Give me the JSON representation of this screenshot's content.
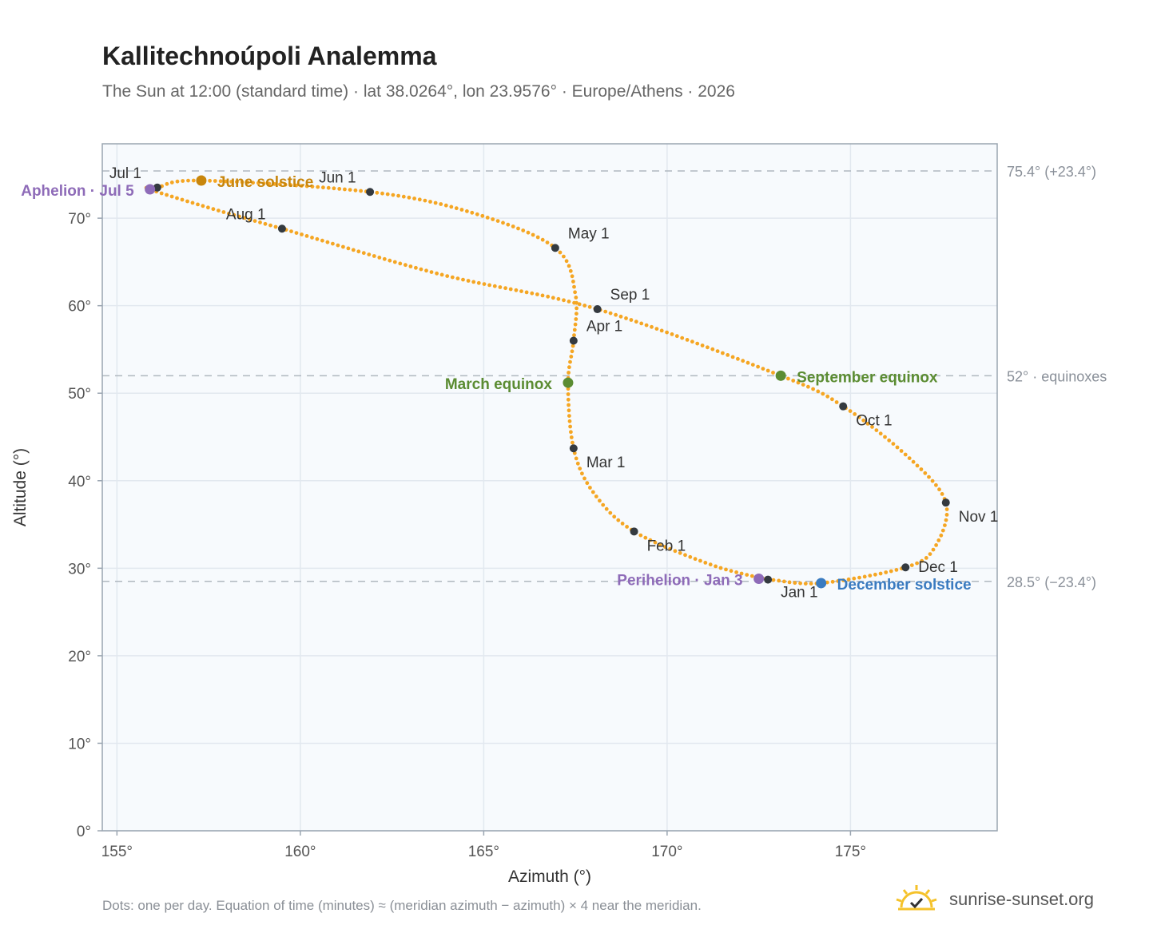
{
  "title": "Kallitechnoúpoli Analemma",
  "subtitle": "The Sun at 12:00 (standard time) · lat 38.0264°, lon 23.9576° · Europe/Athens · 2026",
  "footnote": "Dots: one per day. Equation of time (minutes) ≈ (meridian azimuth − azimuth) × 4 near the meridian.",
  "brand": {
    "text": "sunrise-sunset.org",
    "icon": "sun-check-icon"
  },
  "chart_data": {
    "type": "scatter",
    "xlabel": "Azimuth (°)",
    "ylabel": "Altitude (°)",
    "xlim": [
      154.6,
      179.0
    ],
    "ylim": [
      0,
      78.5
    ],
    "xticks": [
      155,
      160,
      165,
      170,
      175
    ],
    "yticks": [
      0,
      10,
      20,
      30,
      40,
      50,
      60,
      70
    ],
    "x_tick_labels": [
      "155°",
      "160°",
      "165°",
      "170°",
      "175°"
    ],
    "y_tick_labels": [
      "0°",
      "10°",
      "20°",
      "30°",
      "40°",
      "50°",
      "60°",
      "70°"
    ],
    "grid": true,
    "colors": {
      "path": "#f5a623",
      "month": "#343a40",
      "equinox": "#5b8c32",
      "june": "#c8860d",
      "december": "#3a7bc0",
      "apsis": "#8e6bb8",
      "ref": "#b0b8c0"
    },
    "reference_lines": [
      {
        "y": 75.4,
        "label": "75.4° (+23.4°)"
      },
      {
        "y": 52.0,
        "label": "52° · equinoxes"
      },
      {
        "y": 28.5,
        "label": "28.5° (−23.4°)"
      }
    ],
    "daily_path": [
      {
        "date": "Jan 1",
        "az": 172.75,
        "alt": 28.7
      },
      {
        "date": "Jan 16",
        "az": 171.2,
        "alt": 30.4
      },
      {
        "date": "Feb 1",
        "az": 169.1,
        "alt": 34.2
      },
      {
        "date": "Feb 15",
        "az": 168.0,
        "alt": 38.6
      },
      {
        "date": "Mar 1",
        "az": 167.45,
        "alt": 43.7
      },
      {
        "date": "Mar 20",
        "az": 167.3,
        "alt": 51.2
      },
      {
        "date": "Apr 1",
        "az": 167.45,
        "alt": 56.0
      },
      {
        "date": "Apr 15",
        "az": 167.5,
        "alt": 61.3
      },
      {
        "date": "May 1",
        "az": 166.95,
        "alt": 66.6
      },
      {
        "date": "May 16",
        "az": 164.7,
        "alt": 70.6
      },
      {
        "date": "Jun 1",
        "az": 161.9,
        "alt": 73.0
      },
      {
        "date": "Jun 21",
        "az": 157.3,
        "alt": 74.3
      },
      {
        "date": "Jul 1",
        "az": 156.1,
        "alt": 73.5
      },
      {
        "date": "Jul 5",
        "az": 155.9,
        "alt": 73.3
      },
      {
        "date": "Jul 16",
        "az": 157.5,
        "alt": 71.2
      },
      {
        "date": "Aug 1",
        "az": 159.5,
        "alt": 68.8
      },
      {
        "date": "Aug 16",
        "az": 163.8,
        "alt": 63.6
      },
      {
        "date": "Sep 1",
        "az": 168.1,
        "alt": 59.6
      },
      {
        "date": "Sep 23",
        "az": 173.1,
        "alt": 52.0
      },
      {
        "date": "Oct 1",
        "az": 174.8,
        "alt": 48.5
      },
      {
        "date": "Oct 16",
        "az": 176.6,
        "alt": 42.6
      },
      {
        "date": "Nov 1",
        "az": 177.6,
        "alt": 37.5
      },
      {
        "date": "Nov 16",
        "az": 177.3,
        "alt": 32.4
      },
      {
        "date": "Dec 1",
        "az": 176.5,
        "alt": 30.1
      },
      {
        "date": "Dec 21",
        "az": 174.2,
        "alt": 28.3
      },
      {
        "date": "Dec 31",
        "az": 172.9,
        "alt": 28.65
      }
    ],
    "month_markers": [
      {
        "label": "Jan 1",
        "az": 172.75,
        "alt": 28.7
      },
      {
        "label": "Feb 1",
        "az": 169.1,
        "alt": 34.2
      },
      {
        "label": "Mar 1",
        "az": 167.45,
        "alt": 43.7
      },
      {
        "label": "Apr 1",
        "az": 167.45,
        "alt": 56.0
      },
      {
        "label": "May 1",
        "az": 166.95,
        "alt": 66.6
      },
      {
        "label": "Jun 1",
        "az": 161.9,
        "alt": 73.0
      },
      {
        "label": "Jul 1",
        "az": 156.1,
        "alt": 73.5
      },
      {
        "label": "Aug 1",
        "az": 159.5,
        "alt": 68.8
      },
      {
        "label": "Sep 1",
        "az": 168.1,
        "alt": 59.6
      },
      {
        "label": "Oct 1",
        "az": 174.8,
        "alt": 48.5
      },
      {
        "label": "Nov 1",
        "az": 177.6,
        "alt": 37.5
      },
      {
        "label": "Dec 1",
        "az": 176.5,
        "alt": 30.1
      }
    ],
    "events": [
      {
        "label": "March equinox",
        "az": 167.3,
        "alt": 51.2,
        "kind": "equinox"
      },
      {
        "label": "September equinox",
        "az": 173.1,
        "alt": 52.0,
        "kind": "equinox"
      },
      {
        "label": "June solstice",
        "az": 157.3,
        "alt": 74.3,
        "kind": "june"
      },
      {
        "label": "December solstice",
        "az": 174.2,
        "alt": 28.3,
        "kind": "december"
      },
      {
        "label": "Aphelion · Jul 5",
        "az": 155.9,
        "alt": 73.3,
        "kind": "apsis"
      },
      {
        "label": "Perihelion · Jan 3",
        "az": 172.5,
        "alt": 28.8,
        "kind": "apsis"
      }
    ]
  }
}
